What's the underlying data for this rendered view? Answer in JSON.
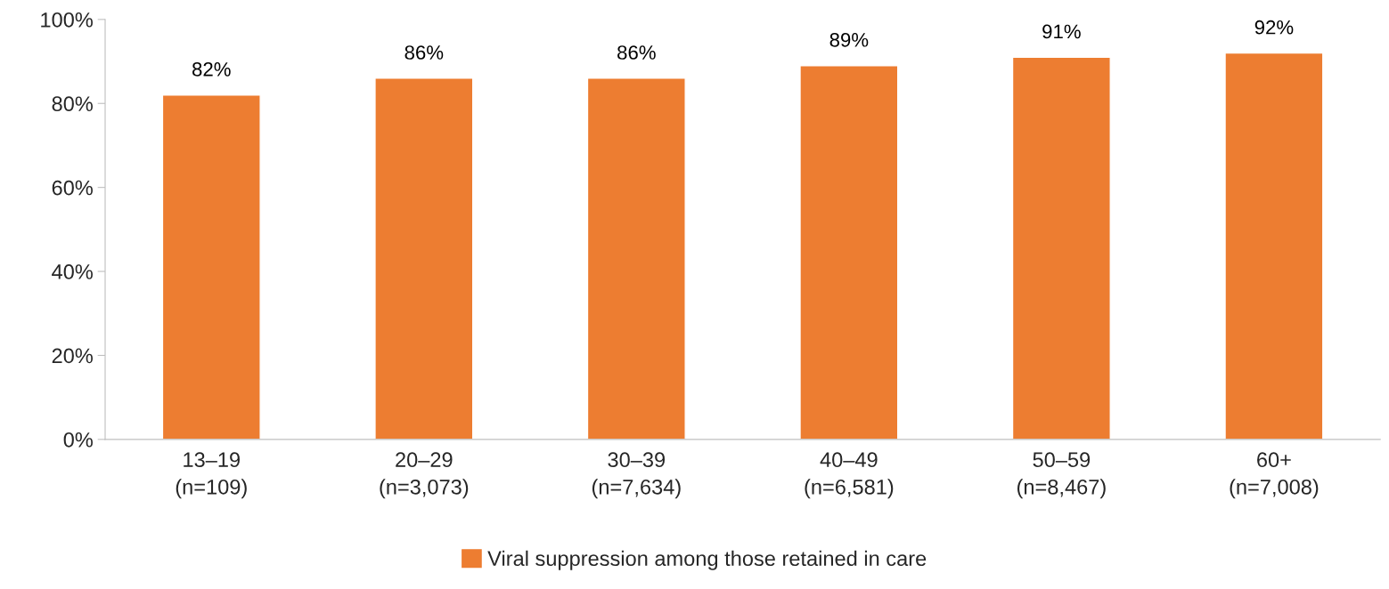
{
  "chart_data": {
    "type": "bar",
    "categories": [
      "13–19\n(n=109)",
      "20–29\n(n=3,073)",
      "30–39\n(n=7,634)",
      "40–49\n(n=6,581)",
      "50–59\n(n=8,467)",
      "60+\n(n=7,008)"
    ],
    "series": [
      {
        "name": "Viral suppression among those retained in care",
        "color": "#ed7d31",
        "values": [
          82,
          86,
          86,
          89,
          91,
          92
        ],
        "value_labels": [
          "82%",
          "86%",
          "86%",
          "89%",
          "91%",
          "92%"
        ]
      }
    ],
    "ylim": [
      0,
      100
    ],
    "yticks": [
      {
        "value": 0,
        "label": "0%"
      },
      {
        "value": 20,
        "label": "20%"
      },
      {
        "value": 40,
        "label": "40%"
      },
      {
        "value": 60,
        "label": "60%"
      },
      {
        "value": 80,
        "label": "80%"
      },
      {
        "value": 100,
        "label": "100%"
      }
    ],
    "grid": false,
    "legend": "bottom"
  }
}
